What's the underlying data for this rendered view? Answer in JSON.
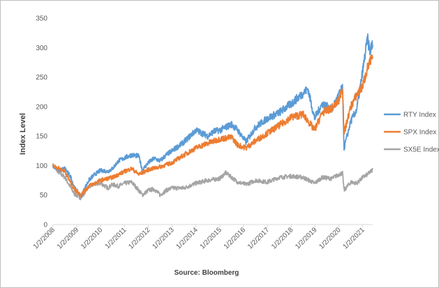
{
  "chart_data": {
    "type": "line",
    "title": "",
    "ylabel": "Index Level",
    "xlabel": "Source: Bloomberg",
    "ylim": [
      0,
      350
    ],
    "yticks": [
      0,
      50,
      100,
      150,
      200,
      250,
      300,
      350
    ],
    "xlim": [
      2008.0,
      2021.42
    ],
    "xtick_values": [
      2008,
      2009,
      2010,
      2011,
      2012,
      2013,
      2014,
      2015,
      2016,
      2017,
      2018,
      2019,
      2020,
      2021
    ],
    "xtick_labels": [
      "1/2/2008",
      "1/2/2009",
      "1/2/2010",
      "1/2/2011",
      "1/2/2012",
      "1/2/2013",
      "1/2/2014",
      "1/2/2015",
      "1/2/2016",
      "1/2/2017",
      "1/2/2018",
      "1/2/2019",
      "1/2/2020",
      "1/2/2021"
    ],
    "grid": false,
    "legend_position": "right",
    "colors": {
      "RTY Index": "#5b9bd5",
      "SPX Index": "#ed7d31",
      "SX5E Index": "#a5a5a5"
    },
    "series": [
      {
        "name": "RTY Index",
        "x": [
          2008.0,
          2008.25,
          2008.5,
          2008.75,
          2008.9,
          2009.17,
          2009.5,
          2009.75,
          2010.0,
          2010.3,
          2010.5,
          2010.75,
          2011.0,
          2011.3,
          2011.6,
          2011.75,
          2012.0,
          2012.25,
          2012.5,
          2012.75,
          2013.0,
          2013.5,
          2014.0,
          2014.25,
          2014.5,
          2014.75,
          2015.0,
          2015.5,
          2015.75,
          2016.1,
          2016.5,
          2017.0,
          2017.5,
          2018.0,
          2018.7,
          2018.98,
          2019.3,
          2019.7,
          2020.0,
          2020.15,
          2020.22,
          2020.5,
          2020.75,
          2021.0,
          2021.2,
          2021.3,
          2021.42
        ],
        "values": [
          100,
          92,
          95,
          80,
          62,
          48,
          75,
          85,
          92,
          90,
          95,
          108,
          113,
          118,
          116,
          92,
          105,
          112,
          108,
          118,
          125,
          140,
          160,
          155,
          150,
          158,
          160,
          170,
          160,
          140,
          165,
          180,
          190,
          205,
          230,
          180,
          205,
          195,
          220,
          232,
          130,
          175,
          195,
          260,
          315,
          295,
          305
        ]
      },
      {
        "name": "SPX Index",
        "x": [
          2008.0,
          2008.5,
          2008.75,
          2008.9,
          2009.17,
          2009.5,
          2010.0,
          2010.5,
          2011.0,
          2011.3,
          2011.6,
          2012.0,
          2012.5,
          2013.0,
          2013.5,
          2014.0,
          2014.5,
          2015.0,
          2015.5,
          2015.75,
          2016.1,
          2016.5,
          2017.0,
          2017.5,
          2018.0,
          2018.5,
          2018.98,
          2019.3,
          2019.7,
          2020.0,
          2020.15,
          2020.22,
          2020.5,
          2020.75,
          2021.0,
          2021.2,
          2021.42
        ],
        "values": [
          100,
          90,
          70,
          60,
          50,
          65,
          75,
          80,
          90,
          95,
          85,
          93,
          98,
          105,
          118,
          130,
          138,
          145,
          148,
          135,
          130,
          142,
          155,
          168,
          182,
          187,
          160,
          190,
          197,
          210,
          235,
          155,
          200,
          220,
          235,
          265,
          285
        ]
      },
      {
        "name": "SX5E Index",
        "x": [
          2008.0,
          2008.25,
          2008.5,
          2008.75,
          2008.9,
          2009.17,
          2009.5,
          2009.75,
          2010.0,
          2010.3,
          2010.5,
          2010.75,
          2011.0,
          2011.3,
          2011.6,
          2011.75,
          2012.0,
          2012.25,
          2012.5,
          2012.75,
          2013.0,
          2013.5,
          2014.0,
          2014.5,
          2015.0,
          2015.25,
          2015.5,
          2015.75,
          2016.1,
          2016.5,
          2017.0,
          2017.5,
          2018.0,
          2018.5,
          2018.98,
          2019.3,
          2019.7,
          2020.0,
          2020.15,
          2020.22,
          2020.5,
          2020.75,
          2021.0,
          2021.2,
          2021.42
        ],
        "values": [
          100,
          88,
          80,
          62,
          52,
          45,
          65,
          68,
          70,
          62,
          68,
          65,
          70,
          72,
          58,
          50,
          58,
          60,
          50,
          58,
          62,
          62,
          70,
          75,
          78,
          88,
          80,
          72,
          68,
          75,
          72,
          80,
          82,
          80,
          70,
          80,
          78,
          85,
          87,
          58,
          72,
          70,
          80,
          85,
          93
        ]
      }
    ]
  }
}
